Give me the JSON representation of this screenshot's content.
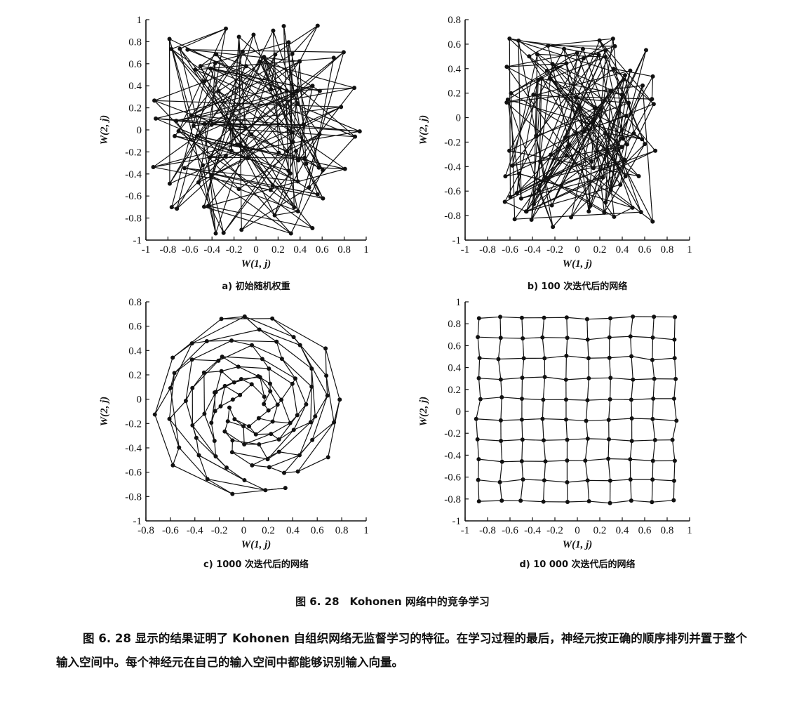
{
  "chart_data": [
    {
      "type": "scatter",
      "id": "a",
      "caption": "a) 初始随机权重",
      "xlabel": "W(1, j)",
      "ylabel": "W(2, j)",
      "xlim": [
        -1,
        1
      ],
      "ylim": [
        -1,
        1
      ],
      "xticks": [
        "-1",
        "-0.8",
        "-0.6",
        "-0.4",
        "-0.2",
        "0",
        "0.2",
        "0.4",
        "0.6",
        "0.8",
        "1"
      ],
      "yticks": [
        "-1",
        "-0.8",
        "-0.6",
        "-0.4",
        "-0.2",
        "0",
        "0.2",
        "0.4",
        "0.6",
        "0.8",
        "1"
      ],
      "xtick_values": [
        -1,
        -0.8,
        -0.6,
        -0.4,
        -0.2,
        0,
        0.2,
        0.4,
        0.6,
        0.8,
        1
      ],
      "ytick_values": [
        -1,
        -0.8,
        -0.6,
        -0.4,
        -0.2,
        0,
        0.2,
        0.4,
        0.6,
        0.8,
        1
      ],
      "grid_nodes": 100,
      "layout": "random-uniform",
      "grid_on": false
    },
    {
      "type": "scatter",
      "id": "b",
      "caption": "b) 100 次迭代后的网络",
      "xlabel": "W(1, j)",
      "ylabel": "W(2, j)",
      "xlim": [
        -1,
        1
      ],
      "ylim": [
        -1,
        0.8
      ],
      "xticks": [
        "-1",
        "-0.8",
        "-0.6",
        "-0.4",
        "-0.2",
        "0",
        "0.2",
        "0.4",
        "0.6",
        "0.8",
        "1"
      ],
      "yticks": [
        "-1",
        "-0.8",
        "-0.6",
        "-0.4",
        "-0.2",
        "0",
        "0.2",
        "0.4",
        "0.6",
        "0.8"
      ],
      "xtick_values": [
        -1,
        -0.8,
        -0.6,
        -0.4,
        -0.2,
        0,
        0.2,
        0.4,
        0.6,
        0.8,
        1
      ],
      "ytick_values": [
        -1,
        -0.8,
        -0.6,
        -0.4,
        -0.2,
        0,
        0.2,
        0.4,
        0.6,
        0.8
      ],
      "grid_nodes": 100,
      "layout": "random-contracted",
      "grid_on": false
    },
    {
      "type": "scatter",
      "id": "c",
      "caption": "c) 1000 次迭代后的网络",
      "xlabel": "W(1, j)",
      "ylabel": "W(2, j)",
      "xlim": [
        -0.8,
        1
      ],
      "ylim": [
        -1,
        0.8
      ],
      "xticks": [
        "-0.8",
        "-0.6",
        "-0.4",
        "-0.2",
        "0",
        "0.2",
        "0.4",
        "0.6",
        "0.8",
        "1"
      ],
      "yticks": [
        "-1",
        "-0.8",
        "-0.6",
        "-0.4",
        "-0.2",
        "0",
        "0.2",
        "0.4",
        "0.6",
        "0.8"
      ],
      "xtick_values": [
        -0.8,
        -0.6,
        -0.4,
        -0.2,
        0,
        0.2,
        0.4,
        0.6,
        0.8,
        1
      ],
      "ytick_values": [
        -1,
        -0.8,
        -0.6,
        -0.4,
        -0.2,
        0,
        0.2,
        0.4,
        0.6,
        0.8
      ],
      "grid_nodes": 100,
      "layout": "partially-ordered",
      "grid_on": false
    },
    {
      "type": "scatter",
      "id": "d",
      "caption": "d) 10 000 次迭代后的网络",
      "xlabel": "W(1, j)",
      "ylabel": "W(2, j)",
      "xlim": [
        -1,
        1
      ],
      "ylim": [
        -1,
        1
      ],
      "xticks": [
        "-1",
        "-0.8",
        "-0.6",
        "-0.4",
        "-0.2",
        "0",
        "0.2",
        "0.4",
        "0.6",
        "0.8",
        "1"
      ],
      "yticks": [
        "-1",
        "-0.8",
        "-0.6",
        "-0.4",
        "-0.2",
        "0",
        "0.2",
        "0.4",
        "0.6",
        "0.8",
        "1"
      ],
      "xtick_values": [
        -1,
        -0.8,
        -0.6,
        -0.4,
        -0.2,
        0,
        0.2,
        0.4,
        0.6,
        0.8,
        1
      ],
      "ytick_values": [
        -1,
        -0.8,
        -0.6,
        -0.4,
        -0.2,
        0,
        0.2,
        0.4,
        0.6,
        0.8,
        1
      ],
      "grid_nodes": 100,
      "layout": "ordered-lattice",
      "grid_on": false
    }
  ],
  "figure_caption": "图 6. 28　Kohonen 网络中的竞争学习",
  "body_text": "图 6. 28 显示的结果证明了 Kohonen 自组织网络无监督学习的特征。在学习过程的最后，神经元按正确的顺序排列并置于整个输入空间中。每个神经元在自己的输入空间中都能够识别输入向量。"
}
